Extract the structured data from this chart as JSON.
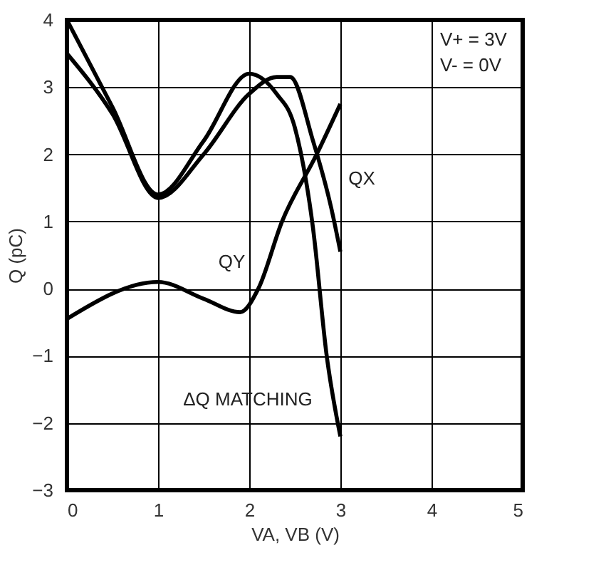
{
  "chart_data": {
    "type": "line",
    "xlabel": "VA, VB (V)",
    "ylabel": "Q (pC)",
    "xlim": [
      0,
      5
    ],
    "ylim": [
      -3,
      4
    ],
    "xticks": [
      0,
      1,
      2,
      3,
      4,
      5
    ],
    "yticks": [
      -3,
      -2,
      -1,
      0,
      1,
      2,
      3,
      4
    ],
    "grid": true,
    "marker": "none",
    "line_style": "solid",
    "series": [
      {
        "color": "#000000",
        "x": [
          0,
          0.5,
          1,
          1.5,
          2,
          2.3,
          2.5,
          2.7,
          2.85,
          3
        ],
        "values": [
          4,
          2.7,
          1.4,
          2.2,
          3.2,
          2.9,
          2.4,
          0.9,
          -1,
          -2.2
        ]
      },
      {
        "color": "#000000",
        "x": [
          0,
          0.5,
          1,
          1.5,
          2,
          2.3,
          2.45,
          2.7,
          2.9,
          3
        ],
        "values": [
          3.5,
          2.6,
          1.35,
          2.0,
          2.9,
          3.15,
          3.15,
          2.2,
          1.2,
          0.55
        ]
      },
      {
        "color": "#000000",
        "x": [
          0,
          1,
          1.5,
          1.9,
          2.1,
          2.36,
          2.74,
          3
        ],
        "values": [
          -0.45,
          0.1,
          -0.15,
          -0.35,
          0,
          1,
          2,
          2.75
        ]
      }
    ],
    "annotations": [
      "V+ = 3V",
      "V- = 0V",
      {
        "text": "QX",
        "x": 2.9,
        "y": 1.0
      },
      {
        "text": "QY",
        "x": 2.3,
        "y": 0.65
      },
      {
        "text": "ΔQ MATCHING",
        "x": 2.85,
        "y": -1.1
      }
    ]
  }
}
